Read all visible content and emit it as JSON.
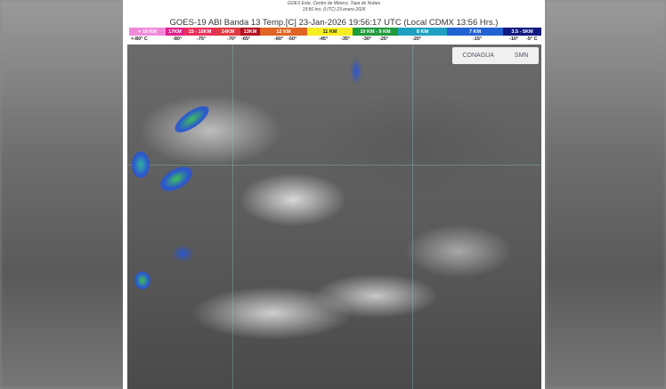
{
  "header": {
    "subtitle_line1": "GOES Este, Centro de México, Topa de Nubes",
    "subtitle_line2": "19:56 hrs. (UTC) 23 enero 2026",
    "title": "GOES-19 ABI Banda 13 Temp.[C] 23-Jan-2026 19:56:17 UTC (Local CDMX  13:56 Hrs.)"
  },
  "legend": {
    "segments": [
      {
        "label": "> 18 KM",
        "color": "#f08ad8"
      },
      {
        "label": "17KM",
        "color": "#e0208a"
      },
      {
        "label": "15 - 16KM",
        "color": "#e8305a"
      },
      {
        "label": "14KM",
        "color": "#e03a44"
      },
      {
        "label": "13KM",
        "color": "#b01222"
      },
      {
        "label": "12 KM",
        "color": "#e06422"
      },
      {
        "label": "11 KM",
        "color": "#f6ee22"
      },
      {
        "label": "10 KM - 9 KM",
        "color": "#1f9a3c"
      },
      {
        "label": "8 KM",
        "color": "#1fa0c0"
      },
      {
        "label": "7 KM",
        "color": "#2262d2"
      },
      {
        "label": "3.5 - 5KM",
        "color": "#121a80"
      }
    ],
    "temps": [
      "<-80° C",
      "-80°",
      "-75°",
      "-70°",
      "-65°",
      "-60°",
      "-50°",
      "-45°",
      "-35°",
      "-30°",
      "-25°",
      "-20°",
      "-15°",
      "-10°",
      "-5° C"
    ]
  },
  "logos": {
    "conagua": "CONAGUA",
    "smn": "SMN"
  }
}
